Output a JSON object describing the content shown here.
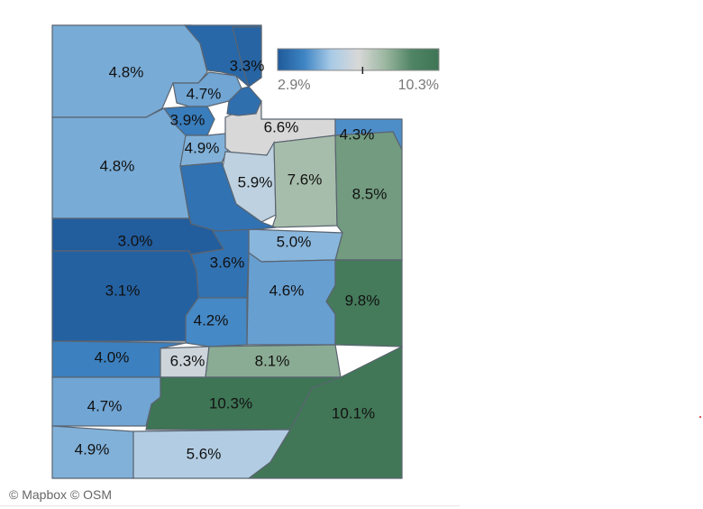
{
  "legend": {
    "min_label": "2.9%",
    "max_label": "10.3%",
    "min_value": 2.9,
    "max_value": 10.3,
    "marker_value": 6.8,
    "colors": [
      "#1f5a9a",
      "#3f85c4",
      "#a9cbe6",
      "#d8d8d8",
      "#9cb7a1",
      "#4f8464",
      "#3e7555"
    ]
  },
  "regions": [
    {
      "id": "box-elder",
      "value": 4.8,
      "label": "4.8%"
    },
    {
      "id": "cache",
      "value": 3.3,
      "label": "3.3%"
    },
    {
      "id": "weber",
      "value": 4.7,
      "label": "4.7%"
    },
    {
      "id": "davis",
      "value": 3.9,
      "label": "3.9%"
    },
    {
      "id": "salt-lake",
      "value": 4.9,
      "label": "4.9%"
    },
    {
      "id": "summit",
      "value": 6.6,
      "label": "6.6%"
    },
    {
      "id": "daggett",
      "value": 4.3,
      "label": "4.3%"
    },
    {
      "id": "tooele",
      "value": 4.8,
      "label": "4.8%"
    },
    {
      "id": "wasatch",
      "value": 5.9,
      "label": "5.9%"
    },
    {
      "id": "duchesne",
      "value": 7.6,
      "label": "7.6%"
    },
    {
      "id": "uintah",
      "value": 8.5,
      "label": "8.5%"
    },
    {
      "id": "juab",
      "value": 3.0,
      "label": "3.0%"
    },
    {
      "id": "carbon",
      "value": 5.0,
      "label": "5.0%"
    },
    {
      "id": "sanpete",
      "value": 3.6,
      "label": "3.6%"
    },
    {
      "id": "millard",
      "value": 3.1,
      "label": "3.1%"
    },
    {
      "id": "emery",
      "value": 4.6,
      "label": "4.6%"
    },
    {
      "id": "grand",
      "value": 9.8,
      "label": "9.8%"
    },
    {
      "id": "sevier",
      "value": 4.2,
      "label": "4.2%"
    },
    {
      "id": "beaver",
      "value": 4.0,
      "label": "4.0%"
    },
    {
      "id": "piute",
      "value": 6.3,
      "label": "6.3%"
    },
    {
      "id": "wayne",
      "value": 8.1,
      "label": "8.1%"
    },
    {
      "id": "iron",
      "value": 4.7,
      "label": "4.7%"
    },
    {
      "id": "garfield",
      "value": 10.3,
      "label": "10.3%"
    },
    {
      "id": "san-juan",
      "value": 10.1,
      "label": "10.1%"
    },
    {
      "id": "washington",
      "value": 4.9,
      "label": "4.9%"
    },
    {
      "id": "kane",
      "value": 5.6,
      "label": "5.6%"
    },
    {
      "id": "utah",
      "value": 3.6,
      "label": ""
    },
    {
      "id": "morgan",
      "value": 3.5,
      "label": ""
    },
    {
      "id": "rich",
      "value": 3.2,
      "label": ""
    }
  ],
  "attribution": "© Mapbox © OSM"
}
